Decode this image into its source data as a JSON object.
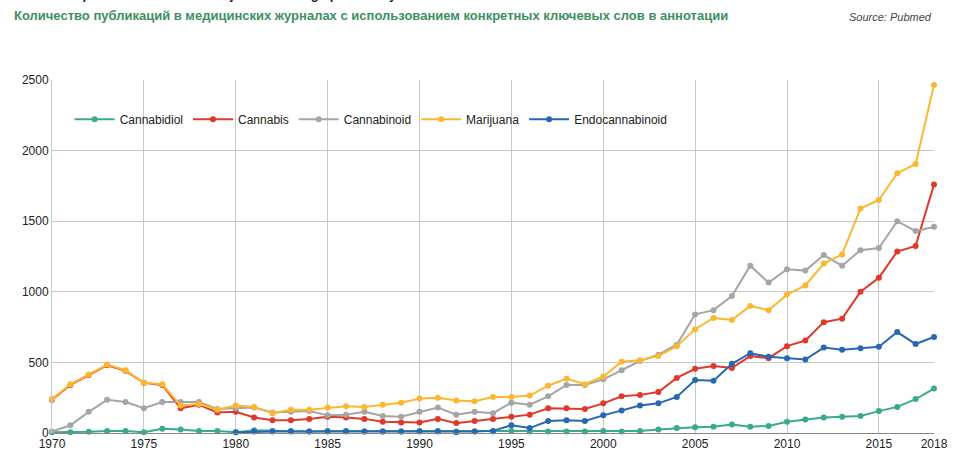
{
  "chart_data": {
    "type": "line",
    "title": "Number of publications in medical journals using specific keywords in abstract",
    "subtitle": "Количество публикаций в медицинских журналах с использованием конкретных ключевых слов в аннотации",
    "annotations": [
      {
        "text": "Source: Pubmed"
      }
    ],
    "x": [
      1970,
      1971,
      1972,
      1973,
      1974,
      1975,
      1976,
      1977,
      1978,
      1979,
      1980,
      1981,
      1982,
      1983,
      1984,
      1985,
      1986,
      1987,
      1988,
      1989,
      1990,
      1991,
      1992,
      1993,
      1994,
      1995,
      1996,
      1997,
      1998,
      1999,
      2000,
      2001,
      2002,
      2003,
      2004,
      2005,
      2006,
      2007,
      2008,
      2009,
      2010,
      2011,
      2012,
      2013,
      2014,
      2015,
      2016,
      2017,
      2018
    ],
    "series": [
      {
        "name": "Cannabidiol",
        "color": "#3aaa8f",
        "values": [
          5,
          5,
          8,
          15,
          15,
          5,
          30,
          25,
          15,
          15,
          5,
          20,
          15,
          15,
          10,
          15,
          15,
          10,
          10,
          10,
          15,
          15,
          10,
          10,
          10,
          15,
          10,
          10,
          10,
          10,
          15,
          10,
          15,
          25,
          35,
          40,
          45,
          60,
          45,
          50,
          80,
          95,
          110,
          115,
          120,
          155,
          185,
          240,
          315
        ]
      },
      {
        "name": "Cannabis",
        "color": "#e0392b",
        "values": [
          235,
          340,
          410,
          480,
          440,
          355,
          340,
          175,
          200,
          145,
          150,
          110,
          90,
          90,
          100,
          115,
          110,
          100,
          80,
          75,
          75,
          100,
          70,
          85,
          100,
          115,
          130,
          175,
          175,
          170,
          210,
          260,
          270,
          290,
          390,
          455,
          475,
          460,
          545,
          530,
          615,
          655,
          785,
          810,
          1000,
          1100,
          1285,
          1325,
          1760
        ]
      },
      {
        "name": "Cannabinoid",
        "color": "#a5a5a5",
        "values": [
          10,
          55,
          150,
          235,
          220,
          175,
          220,
          220,
          220,
          170,
          175,
          180,
          145,
          150,
          155,
          125,
          130,
          150,
          120,
          115,
          150,
          180,
          130,
          150,
          140,
          215,
          200,
          260,
          340,
          340,
          380,
          445,
          510,
          555,
          625,
          840,
          870,
          970,
          1185,
          1065,
          1160,
          1150,
          1260,
          1185,
          1295,
          1310,
          1500,
          1430,
          1460
        ]
      },
      {
        "name": "Marijuana",
        "color": "#fcb731",
        "values": [
          240,
          345,
          415,
          485,
          445,
          355,
          345,
          195,
          205,
          165,
          195,
          185,
          140,
          165,
          165,
          180,
          190,
          185,
          200,
          215,
          245,
          250,
          230,
          225,
          255,
          255,
          265,
          335,
          385,
          345,
          400,
          505,
          515,
          545,
          615,
          735,
          815,
          800,
          900,
          870,
          980,
          1045,
          1200,
          1265,
          1590,
          1650,
          1840,
          1905,
          2465
        ]
      },
      {
        "name": "Endocannabinoid",
        "color": "#2767b3",
        "values": [
          null,
          null,
          null,
          null,
          null,
          null,
          null,
          null,
          null,
          null,
          5,
          10,
          10,
          10,
          10,
          10,
          10,
          10,
          10,
          10,
          10,
          10,
          5,
          10,
          15,
          55,
          35,
          85,
          90,
          85,
          125,
          160,
          195,
          210,
          255,
          375,
          370,
          490,
          565,
          540,
          530,
          520,
          605,
          590,
          600,
          610,
          715,
          630,
          680
        ]
      }
    ],
    "xlim": [
      1970,
      2018
    ],
    "xticks": [
      1970,
      1975,
      1980,
      1985,
      1990,
      1995,
      2000,
      2005,
      2010,
      2015,
      2018
    ],
    "ylim": [
      0,
      2500
    ],
    "yticks": [
      0,
      500,
      1000,
      1500,
      2000,
      2500
    ],
    "grid": true,
    "legend": "top-left",
    "marker": "circle"
  }
}
